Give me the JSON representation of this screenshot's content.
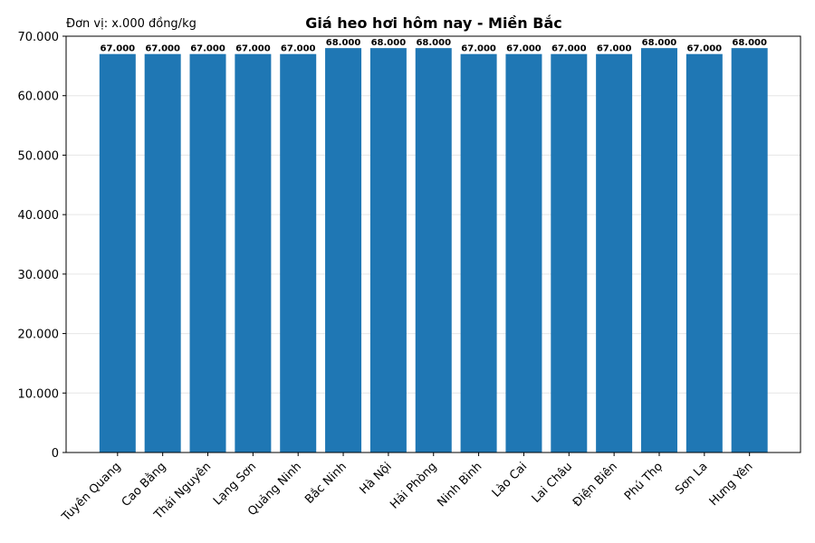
{
  "chart_data": {
    "type": "bar",
    "title": "Giá heo hơi hôm nay - Miền Bắc",
    "annotation": "Đơn vị: x.000 đồng/kg",
    "categories": [
      "Tuyên Quang",
      "Cao Bằng",
      "Thái Nguyên",
      "Lạng Sơn",
      "Quảng Ninh",
      "Bắc Ninh",
      "Hà Nội",
      "Hải Phòng",
      "Ninh Bình",
      "Lào Cai",
      "Lai Châu",
      "Điện Biên",
      "Phú Thọ",
      "Sơn La",
      "Hưng Yên"
    ],
    "values": [
      67000,
      67000,
      67000,
      67000,
      67000,
      68000,
      68000,
      68000,
      67000,
      67000,
      67000,
      67000,
      68000,
      67000,
      68000
    ],
    "value_labels": [
      "67.000",
      "67.000",
      "67.000",
      "67.000",
      "67.000",
      "68.000",
      "68.000",
      "68.000",
      "67.000",
      "67.000",
      "67.000",
      "67.000",
      "68.000",
      "67.000",
      "68.000"
    ],
    "color": "#1f77b4",
    "ylim": [
      0,
      70000
    ],
    "yticks": [
      0,
      {
        "value": 10000,
        "label": "10.000"
      },
      {
        "value": 20000,
        "label": "20.000"
      },
      {
        "value": 30000,
        "label": "30.000"
      },
      {
        "value": 40000,
        "label": "40.000"
      },
      {
        "value": 50000,
        "label": "50.000"
      },
      {
        "value": 60000,
        "label": "60.000"
      },
      {
        "value": 70000,
        "label": "70.000"
      }
    ],
    "grid": true
  }
}
